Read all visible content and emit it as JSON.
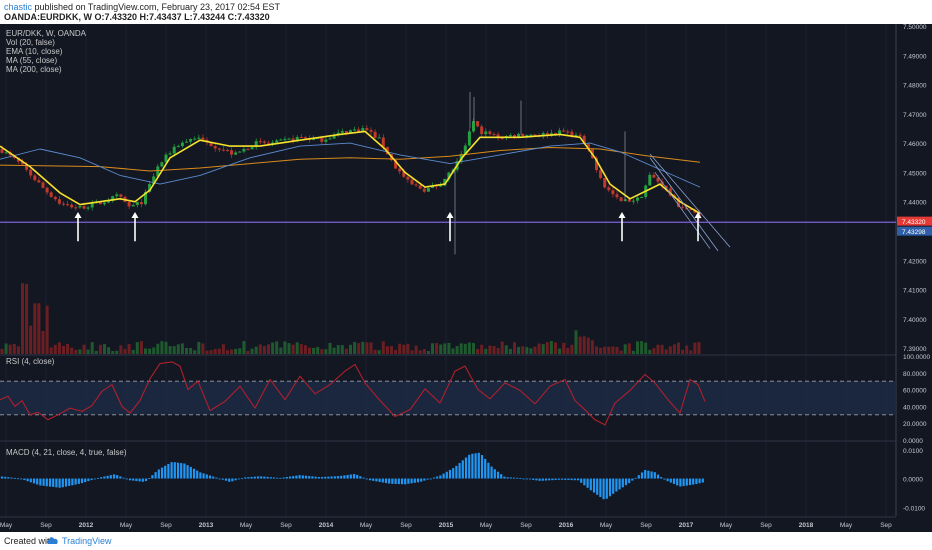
{
  "header": {
    "username": "chastic",
    "published": "published on TradingView.com, February 23, 2017 02:54 EST",
    "symbol": "OANDA:EURDKK, W",
    "ohlc": "O:7.43320 H:7.43437 L:7.43244 C:7.43320"
  },
  "legend": {
    "symbol": "EUR/DKK, W, OANDA",
    "vol": "Vol (20, false)",
    "ema": "EMA (10, close)",
    "ma55": "MA (55, close)",
    "ma200": "MA (200, close)",
    "rsi": "RSI (4, close)",
    "macd": "MACD (4, 21, close, 4, true, false)"
  },
  "footer": {
    "created": "Created with",
    "brand": "TradingView"
  },
  "chart_data": {
    "type": "candlestick",
    "title": "EUR/DKK, W, OANDA",
    "price_axis": {
      "ticks": [
        "7.50000",
        "7.49000",
        "7.48000",
        "7.47000",
        "7.46000",
        "7.45000",
        "7.44000",
        "7.42000",
        "7.41000",
        "7.40000",
        "7.39000"
      ],
      "range": [
        7.388,
        7.5
      ],
      "price_label_last": "7.43320",
      "price_label_level": "7.43298"
    },
    "rsi_axis": {
      "ticks": [
        "100.0000",
        "80.0000",
        "60.0000",
        "40.0000",
        "20.0000",
        "0.0000"
      ],
      "range": [
        0,
        100
      ],
      "band": [
        30,
        70
      ]
    },
    "macd_axis": {
      "ticks": [
        "0.0100",
        "0.0000",
        "-0.0100"
      ],
      "range": [
        -0.013,
        0.012
      ]
    },
    "time_labels": [
      "May",
      "Sep",
      "2012",
      "May",
      "Sep",
      "2013",
      "May",
      "Sep",
      "2014",
      "May",
      "Sep",
      "2015",
      "May",
      "Sep",
      "2016",
      "May",
      "Sep",
      "2017",
      "May",
      "Sep",
      "2018",
      "May",
      "Sep"
    ],
    "time_labels_bold": [
      "2012",
      "2013",
      "2014",
      "2015",
      "2016",
      "2017",
      "2018"
    ],
    "price_keypoints": [
      [
        0,
        7.458
      ],
      [
        20,
        7.453
      ],
      [
        45,
        7.444
      ],
      [
        62,
        7.439
      ],
      [
        80,
        7.438
      ],
      [
        100,
        7.4395
      ],
      [
        118,
        7.442
      ],
      [
        130,
        7.438
      ],
      [
        142,
        7.44
      ],
      [
        158,
        7.452
      ],
      [
        175,
        7.459
      ],
      [
        195,
        7.462
      ],
      [
        215,
        7.459
      ],
      [
        235,
        7.456
      ],
      [
        255,
        7.46
      ],
      [
        275,
        7.46
      ],
      [
        300,
        7.462
      ],
      [
        320,
        7.461
      ],
      [
        345,
        7.464
      ],
      [
        365,
        7.465
      ],
      [
        380,
        7.461
      ],
      [
        395,
        7.452
      ],
      [
        410,
        7.446
      ],
      [
        425,
        7.444
      ],
      [
        440,
        7.446
      ],
      [
        455,
        7.452
      ],
      [
        465,
        7.458
      ],
      [
        472,
        7.468
      ],
      [
        480,
        7.464
      ],
      [
        500,
        7.462
      ],
      [
        520,
        7.463
      ],
      [
        545,
        7.463
      ],
      [
        565,
        7.464
      ],
      [
        580,
        7.462
      ],
      [
        592,
        7.455
      ],
      [
        605,
        7.445
      ],
      [
        620,
        7.44
      ],
      [
        640,
        7.441
      ],
      [
        650,
        7.449
      ],
      [
        662,
        7.446
      ],
      [
        678,
        7.439
      ],
      [
        695,
        7.436
      ],
      [
        705,
        7.4335
      ]
    ],
    "ema10_keypoints": [
      [
        0,
        7.459
      ],
      [
        30,
        7.452
      ],
      [
        60,
        7.443
      ],
      [
        80,
        7.439
      ],
      [
        100,
        7.44
      ],
      [
        120,
        7.441
      ],
      [
        135,
        7.44
      ],
      [
        150,
        7.444
      ],
      [
        170,
        7.455
      ],
      [
        200,
        7.461
      ],
      [
        230,
        7.459
      ],
      [
        260,
        7.459
      ],
      [
        300,
        7.461
      ],
      [
        340,
        7.463
      ],
      [
        365,
        7.464
      ],
      [
        385,
        7.458
      ],
      [
        405,
        7.45
      ],
      [
        425,
        7.445
      ],
      [
        445,
        7.446
      ],
      [
        462,
        7.455
      ],
      [
        480,
        7.462
      ],
      [
        520,
        7.462
      ],
      [
        560,
        7.463
      ],
      [
        580,
        7.462
      ],
      [
        595,
        7.455
      ],
      [
        610,
        7.446
      ],
      [
        630,
        7.441
      ],
      [
        648,
        7.444
      ],
      [
        660,
        7.446
      ],
      [
        680,
        7.44
      ],
      [
        700,
        7.436
      ]
    ],
    "ma55_keypoints": [
      [
        0,
        7.4545
      ],
      [
        40,
        7.458
      ],
      [
        80,
        7.455
      ],
      [
        120,
        7.449
      ],
      [
        160,
        7.446
      ],
      [
        200,
        7.449
      ],
      [
        250,
        7.455
      ],
      [
        300,
        7.459
      ],
      [
        350,
        7.46
      ],
      [
        400,
        7.456
      ],
      [
        450,
        7.453
      ],
      [
        500,
        7.456
      ],
      [
        550,
        7.459
      ],
      [
        590,
        7.46
      ],
      [
        620,
        7.457
      ],
      [
        660,
        7.451
      ],
      [
        700,
        7.445
      ]
    ],
    "ma200_keypoints": [
      [
        0,
        7.4525
      ],
      [
        100,
        7.452
      ],
      [
        150,
        7.4505
      ],
      [
        200,
        7.4515
      ],
      [
        250,
        7.453
      ],
      [
        300,
        7.4545
      ],
      [
        350,
        7.455
      ],
      [
        400,
        7.4545
      ],
      [
        450,
        7.4555
      ],
      [
        500,
        7.4575
      ],
      [
        550,
        7.4585
      ],
      [
        600,
        7.458
      ],
      [
        650,
        7.4555
      ],
      [
        700,
        7.4535
      ]
    ],
    "rsi_keypoints": [
      [
        0,
        48
      ],
      [
        8,
        52
      ],
      [
        15,
        40
      ],
      [
        22,
        47
      ],
      [
        30,
        30
      ],
      [
        38,
        33
      ],
      [
        48,
        24
      ],
      [
        58,
        30
      ],
      [
        70,
        38
      ],
      [
        82,
        34
      ],
      [
        92,
        41
      ],
      [
        102,
        58
      ],
      [
        112,
        66
      ],
      [
        122,
        40
      ],
      [
        130,
        32
      ],
      [
        140,
        47
      ],
      [
        150,
        73
      ],
      [
        160,
        91
      ],
      [
        172,
        93
      ],
      [
        180,
        88
      ],
      [
        188,
        60
      ],
      [
        198,
        70
      ],
      [
        210,
        35
      ],
      [
        225,
        46
      ],
      [
        240,
        64
      ],
      [
        255,
        38
      ],
      [
        270,
        72
      ],
      [
        285,
        48
      ],
      [
        300,
        76
      ],
      [
        315,
        55
      ],
      [
        330,
        66
      ],
      [
        345,
        82
      ],
      [
        355,
        90
      ],
      [
        365,
        68
      ],
      [
        380,
        47
      ],
      [
        395,
        28
      ],
      [
        410,
        36
      ],
      [
        425,
        61
      ],
      [
        440,
        44
      ],
      [
        455,
        82
      ],
      [
        465,
        88
      ],
      [
        478,
        60
      ],
      [
        490,
        49
      ],
      [
        505,
        68
      ],
      [
        520,
        59
      ],
      [
        535,
        43
      ],
      [
        550,
        64
      ],
      [
        565,
        72
      ],
      [
        575,
        47
      ],
      [
        585,
        36
      ],
      [
        595,
        24
      ],
      [
        605,
        18
      ],
      [
        615,
        44
      ],
      [
        630,
        59
      ],
      [
        645,
        78
      ],
      [
        655,
        68
      ],
      [
        668,
        48
      ],
      [
        680,
        32
      ],
      [
        690,
        72
      ],
      [
        698,
        66
      ],
      [
        705,
        46
      ]
    ],
    "macd_keypoints": [
      [
        0,
        0.0008
      ],
      [
        20,
        0.0
      ],
      [
        40,
        -0.0024
      ],
      [
        60,
        -0.0032
      ],
      [
        80,
        -0.0018
      ],
      [
        100,
        0.0004
      ],
      [
        115,
        0.0015
      ],
      [
        130,
        -0.0006
      ],
      [
        145,
        -0.0012
      ],
      [
        158,
        0.003
      ],
      [
        172,
        0.0058
      ],
      [
        185,
        0.0052
      ],
      [
        200,
        0.0022
      ],
      [
        215,
        0.0005
      ],
      [
        230,
        -0.0012
      ],
      [
        245,
        0.0004
      ],
      [
        260,
        0.0008
      ],
      [
        280,
        0.0002
      ],
      [
        300,
        0.0012
      ],
      [
        320,
        0.0005
      ],
      [
        340,
        0.0009
      ],
      [
        355,
        0.0016
      ],
      [
        370,
        -0.0006
      ],
      [
        390,
        -0.0018
      ],
      [
        405,
        -0.002
      ],
      [
        420,
        -0.0012
      ],
      [
        440,
        0.001
      ],
      [
        455,
        0.004
      ],
      [
        470,
        0.0085
      ],
      [
        480,
        0.009
      ],
      [
        492,
        0.004
      ],
      [
        505,
        0.0005
      ],
      [
        520,
        0.0002
      ],
      [
        540,
        -0.0008
      ],
      [
        560,
        -0.0004
      ],
      [
        578,
        -0.0006
      ],
      [
        592,
        -0.0044
      ],
      [
        605,
        -0.0075
      ],
      [
        615,
        -0.0048
      ],
      [
        630,
        -0.0014
      ],
      [
        645,
        0.003
      ],
      [
        655,
        0.0022
      ],
      [
        665,
        -0.0005
      ],
      [
        680,
        -0.0028
      ],
      [
        695,
        -0.002
      ],
      [
        705,
        -0.0012
      ]
    ],
    "arrows_x": [
      78,
      135,
      450,
      622,
      698
    ],
    "trend_lines": [
      [
        [
          650,
          7.4563
        ],
        [
          730,
          7.4245
        ]
      ],
      [
        [
          650,
          7.455
        ],
        [
          718,
          7.4232
        ]
      ],
      [
        [
          655,
          7.45
        ],
        [
          710,
          7.424
        ]
      ]
    ],
    "horizontal_level": 7.43298,
    "colors": {
      "background": "#131722",
      "up": "#26a041",
      "down": "#c0392b",
      "ema": "#f5e22c",
      "ma55": "#5b8bd0",
      "ma200": "#d98a1c",
      "rsi": "#b0202c",
      "macd": "#2196f3",
      "level": "#7b61d6",
      "last_price": "#e53935"
    }
  }
}
